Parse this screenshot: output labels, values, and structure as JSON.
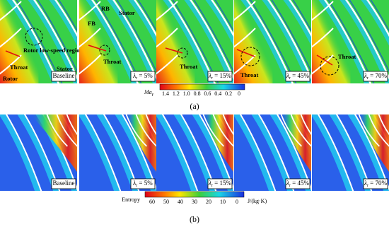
{
  "figure": {
    "panel_a": {
      "label": "(a)",
      "colorbar": {
        "title": {
          "main": "Ma",
          "sub": "r"
        },
        "ticks": [
          "1.4",
          "1.2",
          "1.0",
          "0.8",
          "0.6",
          "0.4",
          "0.2",
          "0"
        ]
      },
      "panels": [
        {
          "condition": "Baseline",
          "annotations": [
            "Rotor low-speed region",
            "Throat",
            "Rotor",
            "Stator"
          ]
        },
        {
          "condition": {
            "symbol": "λ",
            "sub": "r",
            "text": " = 5%"
          },
          "annotations": [
            "RB",
            "FB",
            "Stator",
            "Throat"
          ]
        },
        {
          "condition": {
            "symbol": "λ",
            "sub": "r",
            "text": " = 15%"
          },
          "annotations": [
            "Throat"
          ]
        },
        {
          "condition": {
            "symbol": "λ",
            "sub": "r",
            "text": " = 45%"
          },
          "annotations": [
            "Throat"
          ]
        },
        {
          "condition": {
            "symbol": "λ",
            "sub": "r",
            "text": " = 70%"
          },
          "annotations": [
            "Throat"
          ]
        }
      ]
    },
    "panel_b": {
      "label": "(b)",
      "colorbar": {
        "title": "Entropy",
        "unit": "J/(kg·K)",
        "ticks": [
          "60",
          "50",
          "40",
          "30",
          "20",
          "10",
          "0"
        ]
      },
      "panels": [
        {
          "condition": "Baseline"
        },
        {
          "condition": {
            "symbol": "λ",
            "sub": "r",
            "text": " = 5%"
          }
        },
        {
          "condition": {
            "symbol": "λ",
            "sub": "r",
            "text": " = 15%"
          }
        },
        {
          "condition": {
            "symbol": "λ",
            "sub": "r",
            "text": " = 45%"
          }
        },
        {
          "condition": {
            "symbol": "λ",
            "sub": "r",
            "text": " = 70%"
          }
        }
      ]
    }
  }
}
